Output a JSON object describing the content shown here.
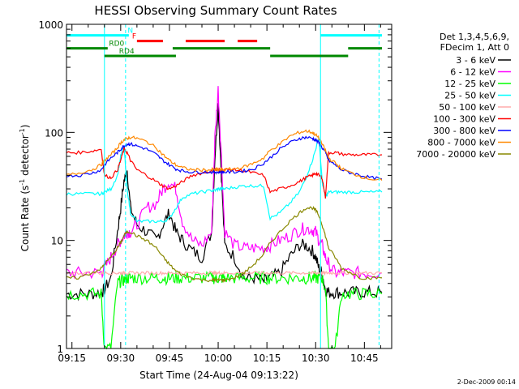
{
  "chart_data": {
    "type": "line",
    "title": "HESSI Observing Summary Count Rates",
    "xlabel": "Start Time (24-Aug-04 09:13:22)",
    "ylabel": "Count Rate (s⁻¹ detector⁻¹)",
    "ylabel_main": "Count Rate (s",
    "ylabel_sup1": "-1",
    "ylabel_mid": " detector",
    "ylabel_sup2": "-1",
    "ylabel_end": ")",
    "yscale": "log",
    "ylim": [
      1,
      1000
    ],
    "xlim_min": [
      9.222,
      10.89
    ],
    "x_ticks": [
      "09:15",
      "09:30",
      "09:45",
      "10:00",
      "10:15",
      "10:30",
      "10:45"
    ],
    "x_tick_minutes": [
      555,
      570,
      585,
      600,
      615,
      630,
      645
    ],
    "y_ticks": [
      "1",
      "10",
      "100",
      "1000"
    ],
    "y_tick_values": [
      1,
      10,
      100,
      1000
    ],
    "legend_header": [
      "Det 1,3,4,5,6,9,",
      "FDecim 1, Att 0"
    ],
    "footer_date": "2-Dec-2009 00:14",
    "x": [
      553.4,
      557,
      561,
      564,
      565,
      567,
      569,
      570,
      571,
      572,
      573,
      575,
      578,
      581,
      583,
      585,
      587,
      589,
      592,
      595,
      598,
      599,
      600,
      601,
      602,
      605,
      608,
      611,
      614,
      616,
      619,
      622,
      625,
      627,
      629,
      630,
      631,
      632,
      633,
      634,
      636,
      638,
      641,
      644,
      647,
      650.4
    ],
    "series": [
      {
        "name": "3 - 6 keV",
        "color": "#000000",
        "values": [
          3.2,
          3.2,
          3.2,
          3.3,
          3.5,
          4.5,
          12,
          20,
          35,
          45,
          20,
          14,
          12,
          10,
          14,
          18,
          12,
          10,
          8,
          7,
          12,
          60,
          180,
          40,
          9,
          7,
          4.5,
          4.5,
          4.2,
          4.5,
          5,
          7,
          9,
          9,
          8,
          7,
          5.5,
          5,
          3.5,
          3.3,
          3.3,
          3.3,
          3.3,
          3.3,
          3.3,
          3.3
        ]
      },
      {
        "name": "6 - 12 keV",
        "color": "#ff00ff",
        "values": [
          5,
          5,
          5,
          5,
          5.5,
          7,
          9,
          10,
          11,
          12,
          12,
          14,
          20,
          22,
          30,
          35,
          30,
          15,
          10,
          9,
          12,
          90,
          250,
          60,
          12,
          9,
          8.5,
          8.5,
          8.5,
          9,
          10,
          11,
          12.5,
          13,
          12.5,
          12,
          10,
          9,
          7,
          6,
          5,
          5,
          5,
          5,
          5,
          5
        ]
      },
      {
        "name": "12 - 25 keV",
        "color": "#00ff00",
        "values": [
          3.2,
          3.2,
          3.2,
          3.2,
          1.0,
          1.0,
          4,
          4.2,
          4.3,
          4.5,
          4.5,
          4.5,
          4.5,
          4.5,
          4.5,
          4.5,
          4.5,
          4.5,
          4.5,
          4.5,
          4.5,
          4.5,
          4.5,
          4.5,
          4.5,
          4.5,
          4.5,
          4.5,
          4.5,
          4.5,
          4.5,
          4.5,
          4.5,
          4.5,
          4.5,
          4.5,
          4.5,
          4.5,
          3.5,
          1.0,
          1.0,
          3.2,
          3.2,
          3.2,
          3.2,
          3.2
        ]
      },
      {
        "name": "25 - 50 keV",
        "color": "#00ffff",
        "values": [
          27,
          27,
          27,
          27,
          28,
          30,
          40,
          60,
          75,
          30,
          18,
          15,
          15,
          15,
          15,
          16,
          20,
          25,
          27,
          28,
          29,
          29,
          30,
          30,
          30,
          31,
          32,
          32,
          32,
          16,
          18,
          22,
          28,
          38,
          55,
          70,
          90,
          35,
          25,
          28,
          28,
          28,
          28,
          28,
          28,
          28
        ]
      },
      {
        "name": "50 - 100 keV",
        "color": "#ffaaaa",
        "values": [
          5,
          5,
          5,
          5,
          5,
          5,
          5,
          5,
          5,
          5,
          5,
          5,
          5,
          5,
          5,
          5,
          5,
          5,
          5,
          5,
          5,
          5,
          5,
          5,
          5,
          5,
          5,
          5,
          5,
          5,
          5,
          5,
          5,
          5,
          5,
          5,
          5,
          5,
          5,
          5,
          5,
          5,
          5,
          5,
          5,
          5
        ]
      },
      {
        "name": "100 - 300 keV",
        "color": "#ff0000",
        "values": [
          65,
          65,
          67,
          70,
          40,
          38,
          45,
          55,
          70,
          65,
          55,
          45,
          40,
          35,
          32,
          30,
          32,
          35,
          40,
          42,
          44,
          45,
          45,
          45,
          45,
          45,
          44,
          42,
          40,
          28,
          30,
          32,
          35,
          38,
          40,
          42,
          40,
          38,
          25,
          65,
          65,
          63,
          62,
          62,
          62,
          62
        ]
      },
      {
        "name": "300 - 800 keV",
        "color": "#0000ff",
        "values": [
          40,
          40,
          42,
          45,
          50,
          58,
          65,
          70,
          75,
          78,
          78,
          75,
          70,
          62,
          55,
          50,
          46,
          44,
          43,
          43,
          43,
          43,
          43,
          43,
          43,
          43,
          44,
          46,
          52,
          58,
          70,
          80,
          88,
          90,
          88,
          85,
          80,
          72,
          65,
          55,
          50,
          45,
          42,
          40,
          38,
          37
        ]
      },
      {
        "name": "800 - 7000 keV",
        "color": "#ff8800",
        "values": [
          40,
          42,
          45,
          50,
          55,
          62,
          72,
          80,
          85,
          88,
          90,
          88,
          82,
          72,
          62,
          55,
          50,
          47,
          45,
          45,
          45,
          45,
          45,
          45,
          45,
          46,
          48,
          52,
          58,
          68,
          78,
          92,
          100,
          103,
          100,
          95,
          88,
          78,
          68,
          58,
          52,
          46,
          42,
          39,
          37,
          36
        ]
      },
      {
        "name": "7000 - 20000 keV",
        "color": "#888800",
        "values": [
          4.5,
          4.5,
          5,
          5.5,
          6,
          7,
          8.5,
          9.5,
          11,
          12,
          12,
          11,
          10,
          8.5,
          7,
          6,
          5.2,
          4.8,
          4.5,
          4.3,
          4.3,
          4.3,
          4.3,
          4.3,
          4.3,
          4.5,
          5,
          6,
          7.5,
          9.5,
          12,
          15,
          18,
          20,
          20,
          19,
          17,
          14,
          11,
          8.5,
          7,
          5.5,
          5,
          4.5,
          4.5,
          4.5
        ]
      }
    ],
    "legend_entries": [
      {
        "label": "3 - 6 keV",
        "color": "#000000"
      },
      {
        "label": "6 - 12 keV",
        "color": "#ff00ff"
      },
      {
        "label": "12 - 25 keV",
        "color": "#00ff00"
      },
      {
        "label": "25 - 50 keV",
        "color": "#00ffff"
      },
      {
        "label": "50 - 100 keV",
        "color": "#ffaaaa"
      },
      {
        "label": "100 - 300 keV",
        "color": "#ff0000"
      },
      {
        "label": "300 - 800 keV",
        "color": "#0000ff"
      },
      {
        "label": "800 - 7000 keV",
        "color": "#ff8800"
      },
      {
        "label": "7000 - 20000 keV",
        "color": "#888800"
      }
    ],
    "state_bars": [
      {
        "label": "N",
        "color": "#00ffff",
        "level": 790,
        "segments": [
          [
            553.4,
            572.5
          ],
          [
            631.5,
            650.4
          ]
        ]
      },
      {
        "label": "F",
        "color": "#ff0000",
        "level": 700,
        "segments": [
          [
            575,
            583
          ],
          [
            590,
            602
          ],
          [
            606,
            612
          ]
        ]
      },
      {
        "label": "RD0",
        "color": "#008800",
        "level": 600,
        "segments": [
          [
            553.4,
            566
          ],
          [
            586,
            616
          ],
          [
            640,
            650.4
          ]
        ]
      },
      {
        "label": "RD4",
        "color": "#008800",
        "level": 510,
        "segments": [
          [
            565,
            587
          ],
          [
            616,
            640
          ]
        ]
      }
    ],
    "vertical_lines": [
      {
        "x": 565.0,
        "color": "#00ffff",
        "style": "solid"
      },
      {
        "x": 571.5,
        "color": "#00ffff",
        "style": "dashed"
      },
      {
        "x": 631.5,
        "color": "#00ffff",
        "style": "solid"
      },
      {
        "x": 649.5,
        "color": "#00ffff",
        "style": "dashed"
      }
    ]
  }
}
